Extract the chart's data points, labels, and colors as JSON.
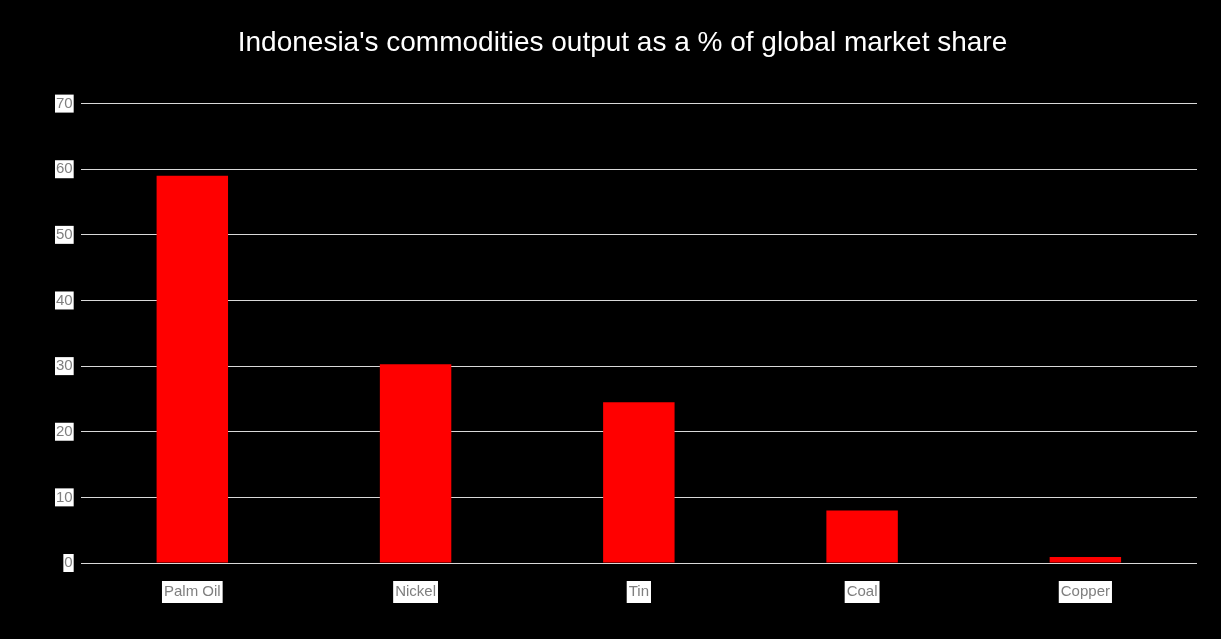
{
  "chart_data": {
    "type": "bar",
    "title": "Indonesia's commodities output as a % of global market share",
    "categories": [
      "Palm Oil",
      "Nickel",
      "Tin",
      "Coal",
      "Copper"
    ],
    "values": [
      59,
      30.3,
      24.5,
      8,
      0.9
    ],
    "color": "#ff0000",
    "ylim": [
      0,
      70
    ],
    "yticks": [
      0,
      10,
      20,
      30,
      40,
      50,
      60,
      70
    ],
    "grid": "y",
    "legend": false
  }
}
